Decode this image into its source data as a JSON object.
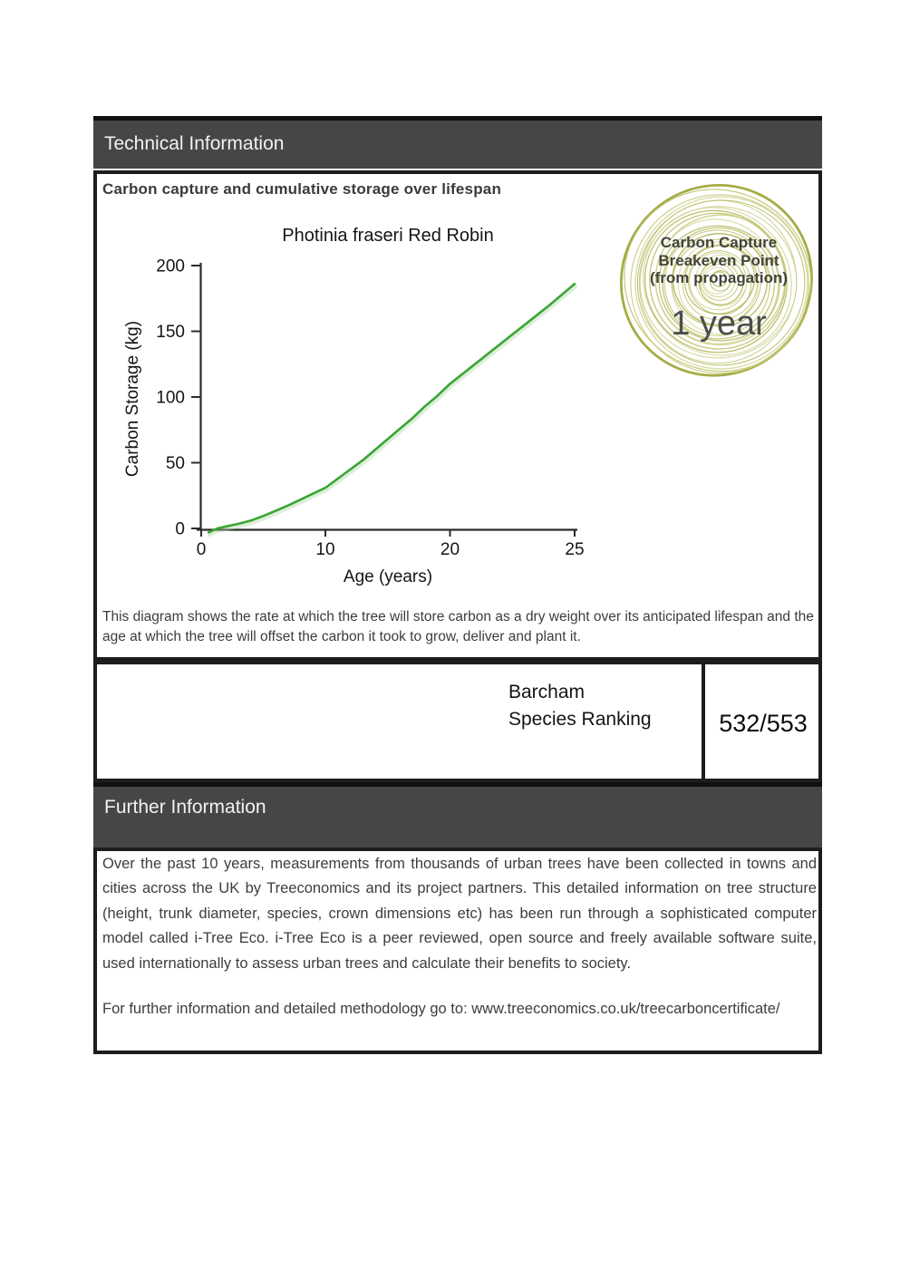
{
  "technical_section": {
    "header": "Technical Information",
    "heading": "Carbon capture and cumulative storage over lifespan",
    "description": "This diagram shows the rate at which the tree will store carbon as a dry weight over its anticipated lifespan and the age at which the tree will offset the carbon it took to grow, deliver and plant it."
  },
  "chart_data": {
    "type": "line",
    "title": "Photinia fraseri Red Robin",
    "xlabel": "Age (years)",
    "ylabel": "Carbon Storage (kg)",
    "x_tick_labels": [
      "0",
      "10",
      "20",
      "25"
    ],
    "y_tick_labels": [
      "0",
      "50",
      "100",
      "150",
      "200"
    ],
    "xlim": [
      0,
      25
    ],
    "ylim": [
      0,
      200
    ],
    "grid": false,
    "legend": "none",
    "series": [
      {
        "name": "Cumulative carbon storage (kg)",
        "points": [
          [
            0.6,
            -3
          ],
          [
            1.3,
            0
          ],
          [
            2,
            1.5
          ],
          [
            3,
            3.5
          ],
          [
            4,
            6
          ],
          [
            5,
            9.5
          ],
          [
            6,
            13.5
          ],
          [
            7,
            17.5
          ],
          [
            8,
            22
          ],
          [
            9,
            26.5
          ],
          [
            10,
            31
          ],
          [
            11,
            38
          ],
          [
            12,
            45
          ],
          [
            13,
            52
          ],
          [
            14,
            60
          ],
          [
            15,
            68
          ],
          [
            16,
            76
          ],
          [
            17,
            84
          ],
          [
            18,
            93
          ],
          [
            19,
            101
          ],
          [
            20,
            110
          ],
          [
            21,
            125
          ],
          [
            22,
            140
          ],
          [
            23,
            155
          ],
          [
            24,
            170
          ],
          [
            25,
            186
          ]
        ]
      }
    ]
  },
  "badge": {
    "line1": "Carbon Capture",
    "line2": "Breakeven Point",
    "line3": "(from propagation)",
    "value": "1 year"
  },
  "ranking": {
    "label_line1": "Barcham",
    "label_line2": "Species Ranking",
    "value": "532/553"
  },
  "further_section": {
    "header": "Further Information",
    "paragraph": "Over the past 10 years, measurements from thousands of urban trees have been collected in towns and cities across the UK by Treeconomics and its project partners. This detailed information on tree structure (height, trunk diameter, species, crown dimensions etc) has been run through a sophisticated computer model called i-Tree Eco. i-Tree Eco is a peer reviewed, open source and freely available software suite, used internationally to assess urban trees and calculate their benefits to society.",
    "link_prefix": "For further information and detailed methodology go to: ",
    "link_url": "www.treeconomics.co.uk/treecarboncertificate/"
  },
  "colors": {
    "header_bar": "#464646",
    "box_border": "#1d1d1d",
    "curve": "#3aa535",
    "curve_shadow": "#a8d8a0",
    "ring_outer": "#a6ac46",
    "ring_colors": [
      "#aab04c",
      "#b9be63",
      "#c8cb80",
      "#d4d697"
    ]
  }
}
